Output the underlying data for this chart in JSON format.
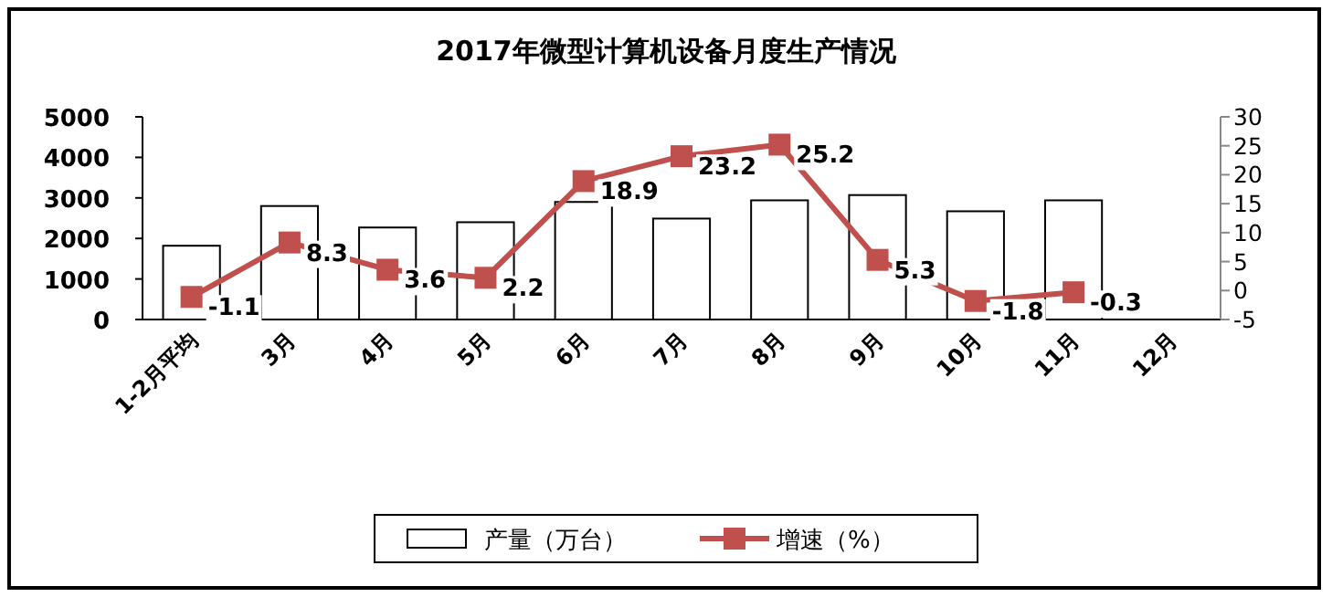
{
  "chart_data": {
    "type": "bar",
    "title": "2017年微型计算机设备月度生产情况",
    "categories": [
      "1-2月平均",
      "3月",
      "4月",
      "5月",
      "6月",
      "7月",
      "8月",
      "9月",
      "10月",
      "11月",
      "12月"
    ],
    "series": [
      {
        "name": "产量（万台）",
        "color": "#ffffff",
        "values": [
          1820,
          2800,
          2270,
          2400,
          2900,
          2490,
          2940,
          3070,
          2670,
          2940,
          null
        ]
      },
      {
        "name": "增速（%）",
        "type": "line",
        "axis": "y2",
        "color": "#c0504d",
        "marker": "square",
        "values": [
          -1.1,
          8.3,
          3.6,
          2.2,
          18.9,
          23.2,
          25.2,
          5.3,
          -1.8,
          -0.3,
          null
        ],
        "value_labels": [
          "-1.1",
          "8.3",
          "3.6",
          "2.2",
          "18.9",
          "23.2",
          "25.2",
          "5.3",
          "-1.8",
          "-0.3",
          null
        ]
      }
    ],
    "ylim": [
      0,
      5000
    ],
    "yticks": [
      0,
      1000,
      2000,
      3000,
      4000,
      5000
    ],
    "y2lim": [
      -5,
      30
    ],
    "y2ticks": [
      -5,
      0,
      5,
      10,
      15,
      20,
      25,
      30
    ],
    "legend": "bottom",
    "grid": false
  }
}
